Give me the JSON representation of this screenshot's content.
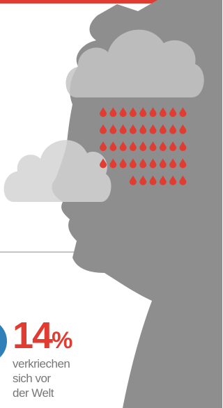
{
  "stat": {
    "value": "14",
    "unit": "%",
    "label": [
      "verkriechen",
      "sich vor",
      "der Welt"
    ]
  }
}
